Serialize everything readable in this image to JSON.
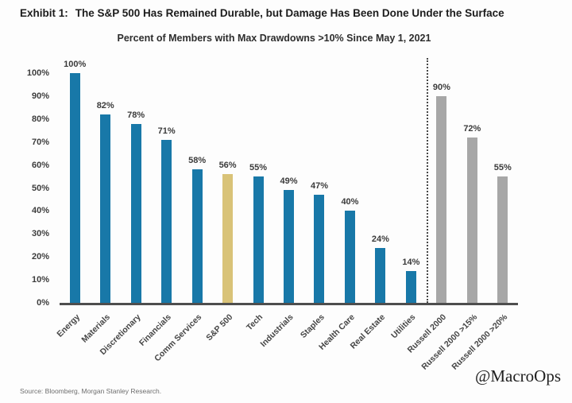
{
  "header": {
    "exhibit_label": "Exhibit 1:",
    "title": "The S&P 500 Has Remained Durable, but Damage Has Been Done Under the Surface"
  },
  "chart_data": {
    "type": "bar",
    "title": "Percent of Members with Max Drawdowns >10% Since May 1, 2021",
    "categories": [
      "Energy",
      "Materials",
      "Discretionary",
      "Financials",
      "Comm Services",
      "S&P 500",
      "Tech",
      "Industrials",
      "Staples",
      "Health Care",
      "Real Estate",
      "Utilities",
      "Russell 2000",
      "Russell 2000 >15%",
      "Russell 2000 >20%"
    ],
    "values": [
      100,
      82,
      78,
      71,
      58,
      56,
      55,
      49,
      47,
      40,
      24,
      14,
      90,
      72,
      55
    ],
    "value_labels": [
      "100%",
      "82%",
      "78%",
      "71%",
      "58%",
      "56%",
      "55%",
      "49%",
      "47%",
      "40%",
      "24%",
      "14%",
      "90%",
      "72%",
      "55%"
    ],
    "groups": [
      "sector",
      "sector",
      "sector",
      "sector",
      "sector",
      "sp500",
      "sector",
      "sector",
      "sector",
      "sector",
      "sector",
      "sector",
      "russell",
      "russell",
      "russell"
    ],
    "colors": {
      "sector": "#1878a8",
      "sp500": "#d9c378",
      "russell": "#a7a7a7"
    },
    "xlabel": "",
    "ylabel": "",
    "ylim": [
      0,
      100
    ],
    "yticks": [
      100,
      90,
      80,
      70,
      60,
      50,
      40,
      30,
      20,
      10,
      0
    ],
    "ytick_labels": [
      "100%",
      "90%",
      "80%",
      "70%",
      "60%",
      "50%",
      "40%",
      "30%",
      "20%",
      "10%",
      "0%"
    ],
    "separator_after_index": 11,
    "grid": false,
    "legend": false
  },
  "footer": {
    "source": "Source: Bloomberg, Morgan Stanley Research.",
    "watermark": "@MacroOps"
  }
}
